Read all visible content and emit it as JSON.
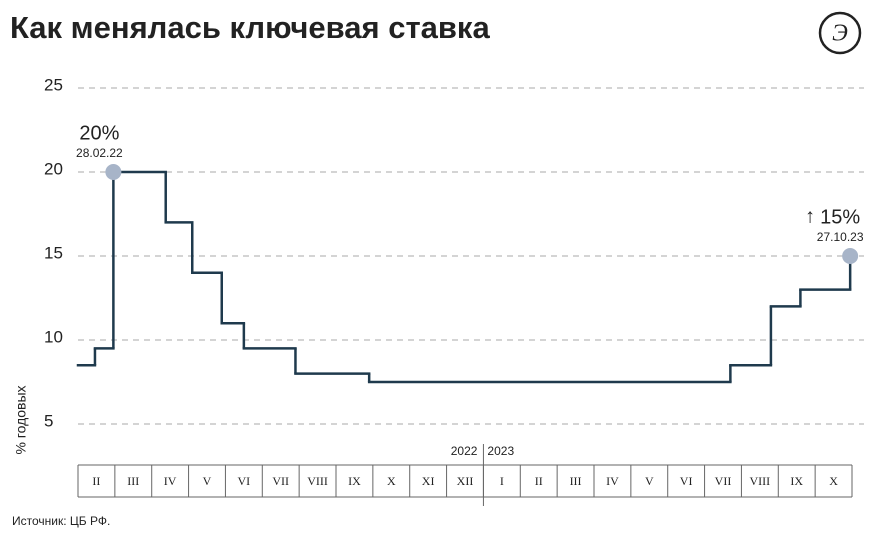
{
  "chart_data": {
    "type": "step-line",
    "title": "Как менялась ключевая ставка",
    "y_label": "% годовых",
    "source": "Источник: ЦБ РФ.",
    "month_labels": [
      "II",
      "III",
      "IV",
      "V",
      "VI",
      "VII",
      "VIII",
      "IX",
      "X",
      "XI",
      "XII",
      "I",
      "II",
      "III",
      "IV",
      "V",
      "VI",
      "VII",
      "VIII",
      "IX",
      "X"
    ],
    "years": [
      "2022",
      "2023"
    ],
    "xlim": [
      0,
      21
    ],
    "ylim": [
      5,
      25
    ],
    "yticks": [
      5,
      10,
      15,
      20,
      25
    ],
    "grid": true,
    "color": "#1f3a4d",
    "x": [
      0,
      0.46,
      0.96,
      2.38,
      3.1,
      3.9,
      4.5,
      5.9,
      7.9,
      17.7,
      18.8,
      19.6,
      20.95
    ],
    "values": [
      8.5,
      9.5,
      20,
      17,
      14,
      11,
      9.5,
      8,
      7.5,
      8.5,
      12,
      13,
      15
    ],
    "annotations": [
      {
        "index": 2,
        "value_label": "20%",
        "date": "28.02.22"
      },
      {
        "index": 12,
        "value_label": "15%",
        "date": "27.10.23"
      }
    ]
  }
}
